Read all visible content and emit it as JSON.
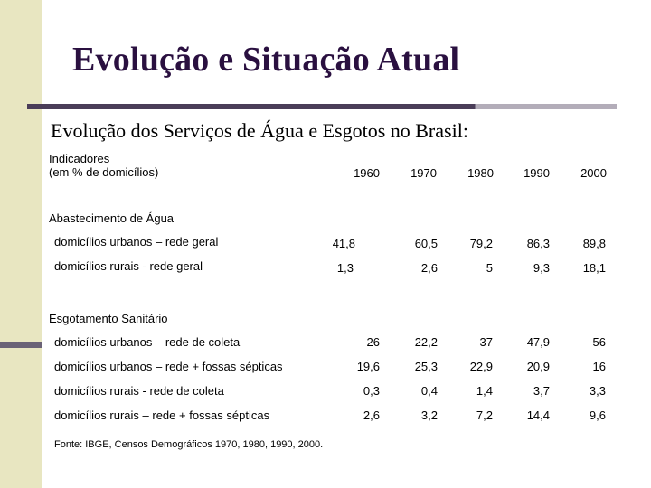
{
  "slide": {
    "title": "Evolução e Situação Atual",
    "subtitle": "Evolução dos Serviços de Água e Esgotos no Brasil:"
  },
  "table": {
    "header_line1": "Indicadores",
    "header_line2": "(em % de domicílios)",
    "years": [
      "1960",
      "1970",
      "1980",
      "1990",
      "2000"
    ],
    "sections": [
      {
        "title": "Abastecimento de Água",
        "rows": [
          {
            "label": "domicílios urbanos – rede geral",
            "values": [
              "41,8",
              "60,5",
              "79,2",
              "86,3",
              "89,8"
            ]
          },
          {
            "label": "domicílios rurais - rede geral",
            "values": [
              "1,3",
              "2,6",
              "5",
              "9,3",
              "18,1"
            ]
          }
        ]
      },
      {
        "title": "Esgotamento Sanitário",
        "rows": [
          {
            "label": "domicílios urbanos – rede de coleta",
            "values": [
              "26",
              "22,2",
              "37",
              "47,9",
              "56"
            ]
          },
          {
            "label": "domicílios urbanos – rede + fossas sépticas",
            "values": [
              "19,6",
              "25,3",
              "22,9",
              "20,9",
              "16"
            ]
          },
          {
            "label": "domicílios rurais - rede de coleta",
            "values": [
              "0,3",
              "0,4",
              "1,4",
              "3,7",
              "3,3"
            ]
          },
          {
            "label": "domicílios rurais – rede + fossas sépticas",
            "values": [
              "2,6",
              "3,2",
              "7,2",
              "14,4",
              "9,6"
            ]
          }
        ]
      }
    ],
    "source": "Fonte: IBGE, Censos Demográficos 1970, 1980, 1990, 2000."
  }
}
